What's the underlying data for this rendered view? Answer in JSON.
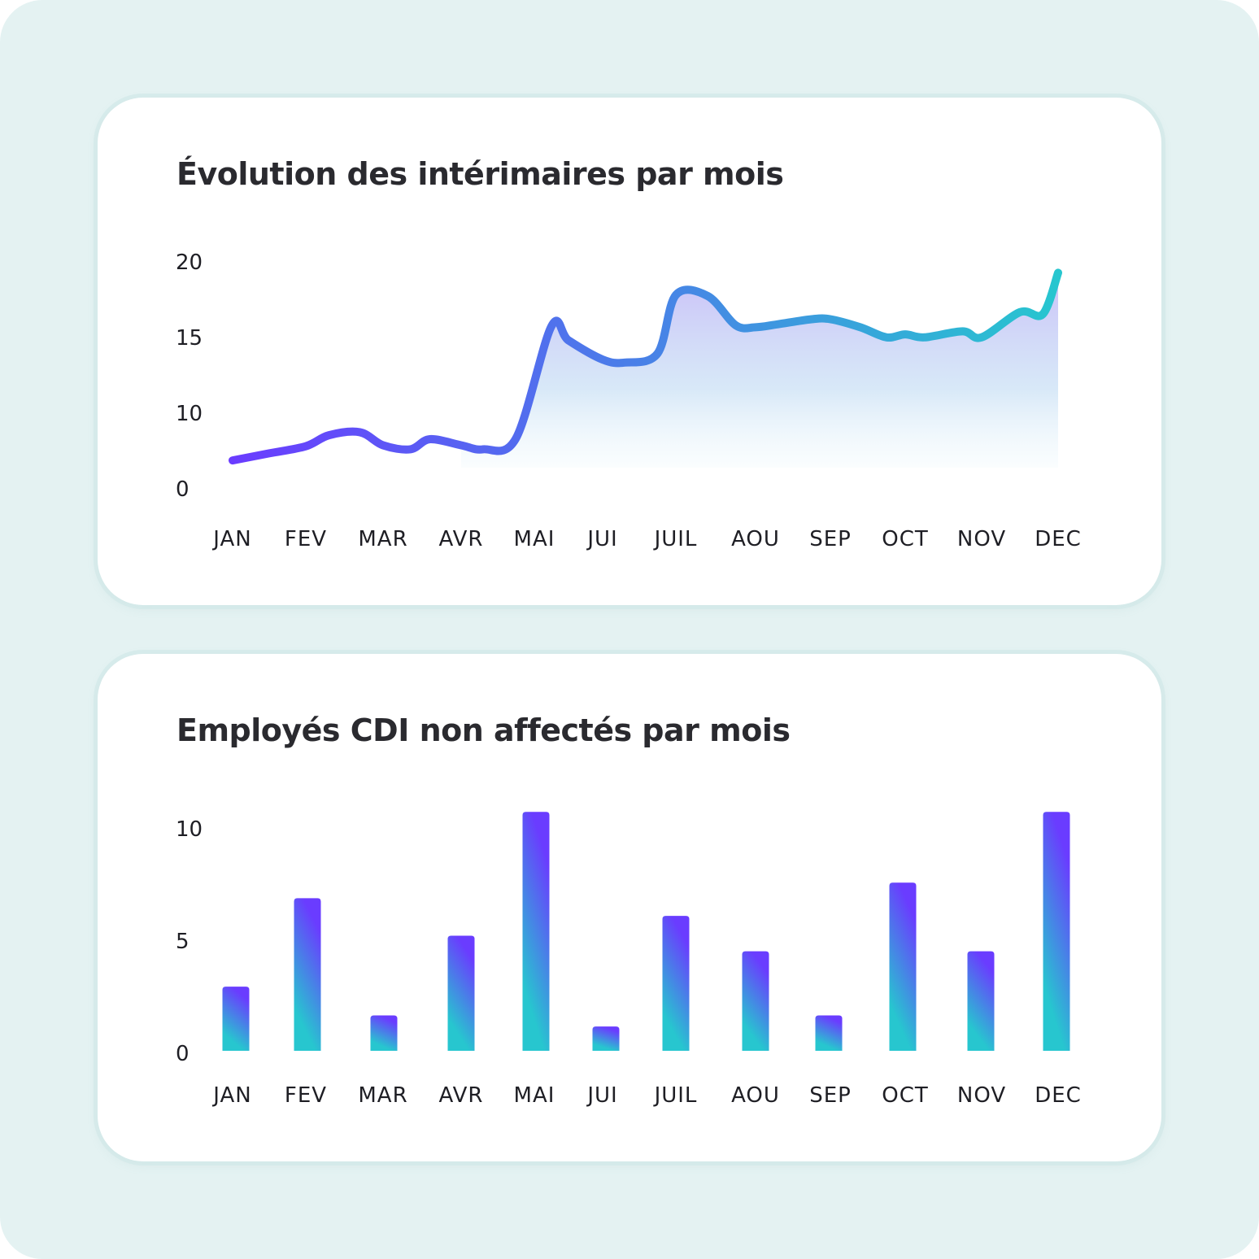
{
  "colors": {
    "background": "#e4f2f2",
    "card": "#ffffff",
    "title": "#2a2a2f",
    "purple": "#6a3cff",
    "teal": "#27c6cf"
  },
  "charts": {
    "line": {
      "title": "Évolution des intérimaires par mois"
    },
    "bar": {
      "title": "Employés CDI non affectés par mois"
    }
  },
  "chart_data": [
    {
      "type": "line",
      "title": "Évolution des intérimaires par mois",
      "categories": [
        "JAN",
        "FEV",
        "MAR",
        "AVR",
        "MAI",
        "JUI",
        "JUIL",
        "AOU",
        "SEP",
        "OCT",
        "NOV",
        "DEC"
      ],
      "yticks": [
        "0",
        "10",
        "15",
        "20"
      ],
      "ylim": [
        0,
        20
      ],
      "area_fill": true,
      "grid": false,
      "x": [
        0,
        0.5,
        1,
        1.3,
        1.7,
        2,
        2.35,
        2.6,
        3,
        3.3,
        3.75,
        4.25,
        4.5,
        5,
        5.3,
        5.75,
        6,
        6.4,
        6.75,
        7,
        7.3,
        7.75,
        8,
        8.4,
        8.75,
        9,
        9.25,
        9.75,
        10,
        10.5,
        10.8,
        11.1
      ],
      "values": [
        0.8,
        1.5,
        2.2,
        3.3,
        3.6,
        2.3,
        1.9,
        2.9,
        2.3,
        1.9,
        3.0,
        14.1,
        12.7,
        10.8,
        10.5,
        11.4,
        17.2,
        17.1,
        14.2,
        14.0,
        14.3,
        14.8,
        14.8,
        14.0,
        13.0,
        13.3,
        13.0,
        13.6,
        13.0,
        15.5,
        15.3,
        19.4
      ]
    },
    {
      "type": "bar",
      "title": "Employés CDI non affectés par mois",
      "categories": [
        "JAN",
        "FEV",
        "MAR",
        "AVR",
        "MAI",
        "JUI",
        "JUIL",
        "AOU",
        "SEP",
        "OCT",
        "NOV",
        "DEC"
      ],
      "yticks": [
        "0",
        "5",
        "10"
      ],
      "ylim": [
        0,
        10
      ],
      "grid": false,
      "values": [
        2.9,
        6.9,
        1.6,
        5.2,
        10.8,
        1.1,
        6.1,
        4.5,
        1.6,
        7.6,
        4.5,
        10.8
      ]
    }
  ]
}
